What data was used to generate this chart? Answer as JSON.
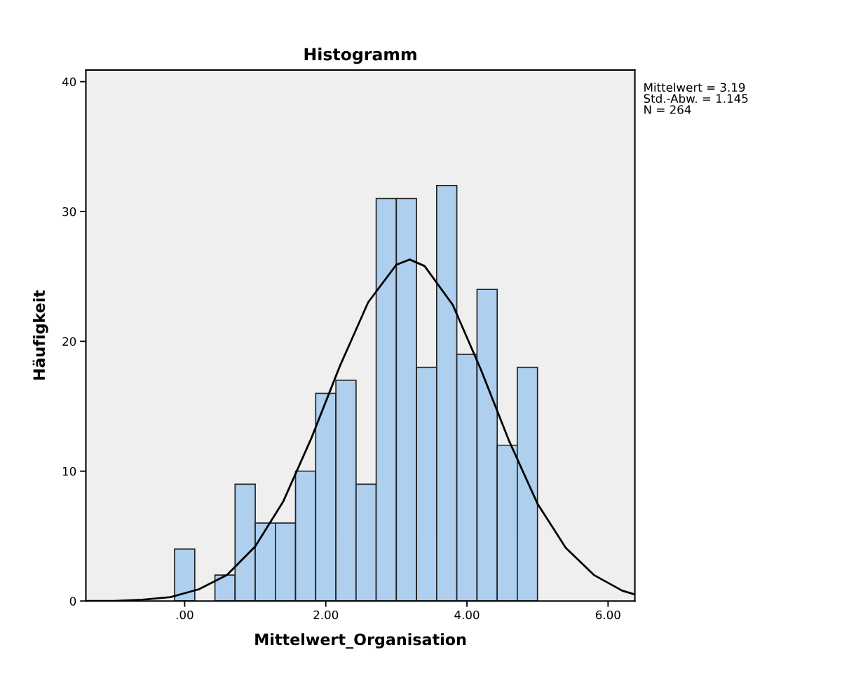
{
  "chart_data": {
    "type": "histogram",
    "title": "Histogramm",
    "xlabel": "Mittelwert_Organisation",
    "ylabel": "Häufigkeit",
    "bins": [
      -0.143,
      0.143,
      0.429,
      0.714,
      1.0,
      1.286,
      1.571,
      1.857,
      2.143,
      2.429,
      2.714,
      3.0,
      3.286,
      3.571,
      3.857,
      4.143,
      4.429,
      4.714,
      5.0
    ],
    "values": [
      4,
      0,
      2,
      9,
      6,
      6,
      10,
      16,
      17,
      9,
      31,
      31,
      18,
      32,
      19,
      24,
      12,
      18
    ],
    "color": "#aecfee",
    "series": [
      {
        "type": "line",
        "color": "#000000",
        "x": [
          -1.4,
          -1.0,
          -0.6,
          -0.2,
          0.2,
          0.6,
          1.0,
          1.4,
          1.8,
          2.2,
          2.6,
          3.0,
          3.19,
          3.4,
          3.8,
          4.2,
          4.6,
          5.0,
          5.4,
          5.8,
          6.2,
          6.38
        ],
        "values": [
          0.0,
          0.0,
          0.1,
          0.3,
          0.9,
          2.0,
          4.2,
          7.7,
          12.6,
          18.1,
          23.0,
          25.9,
          26.3,
          25.8,
          22.8,
          17.8,
          12.3,
          7.5,
          4.1,
          2.0,
          0.8,
          0.5
        ]
      }
    ],
    "xlim": [
      -1.4,
      6.38
    ],
    "ylim": [
      0,
      40.9
    ],
    "xticks": [
      {
        "value": 0,
        "label": ".00"
      },
      {
        "value": 2,
        "label": "2.00"
      },
      {
        "value": 4,
        "label": "4.00"
      },
      {
        "value": 6,
        "label": "6.00"
      }
    ],
    "yticks": [
      0,
      10,
      20,
      30,
      40
    ],
    "grid": false,
    "legend": false,
    "annotations": [
      "Mittelwert = 3.19",
      "Std.-Abw. = 1.145",
      "N = 264"
    ]
  }
}
